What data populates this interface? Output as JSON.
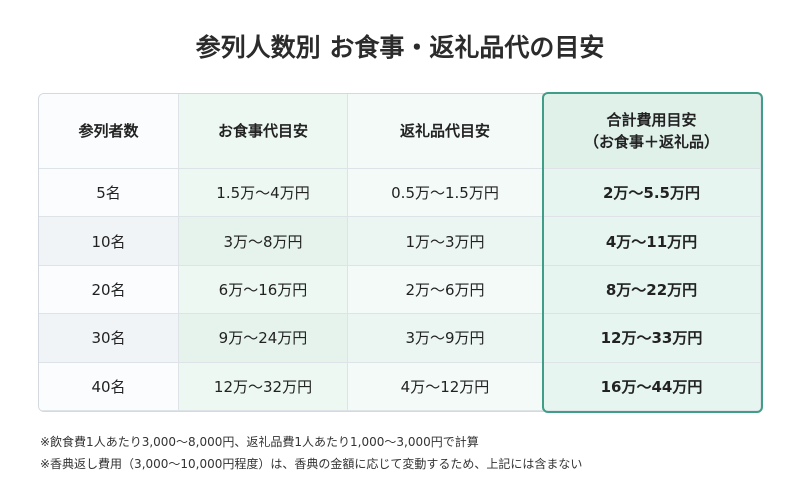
{
  "title": "参列人数別 お食事・返礼品代の目安",
  "table": {
    "headers": [
      "参列者数",
      "お食事代目安",
      "返礼品代目安",
      [
        "合計費用目安",
        "（お食事＋返礼品）"
      ]
    ],
    "rows": [
      [
        "5名",
        "1.5万〜4万円",
        "0.5万〜1.5万円",
        "2万〜5.5万円"
      ],
      [
        "10名",
        "3万〜8万円",
        "1万〜3万円",
        "4万〜11万円"
      ],
      [
        "20名",
        "6万〜16万円",
        "2万〜6万円",
        "8万〜22万円"
      ],
      [
        "30名",
        "9万〜24万円",
        "3万〜9万円",
        "12万〜33万円"
      ],
      [
        "40名",
        "12万〜32万円",
        "4万〜12万円",
        "16万〜44万円"
      ]
    ]
  },
  "notes": [
    "※飲食費1人あたり3,000〜8,000円、返礼品費1人あたり1,000〜3,000円で計算",
    "※香典返し費用（3,000〜10,000円程度）は、香典の金額に応じて変動するため、上記には含まない"
  ]
}
